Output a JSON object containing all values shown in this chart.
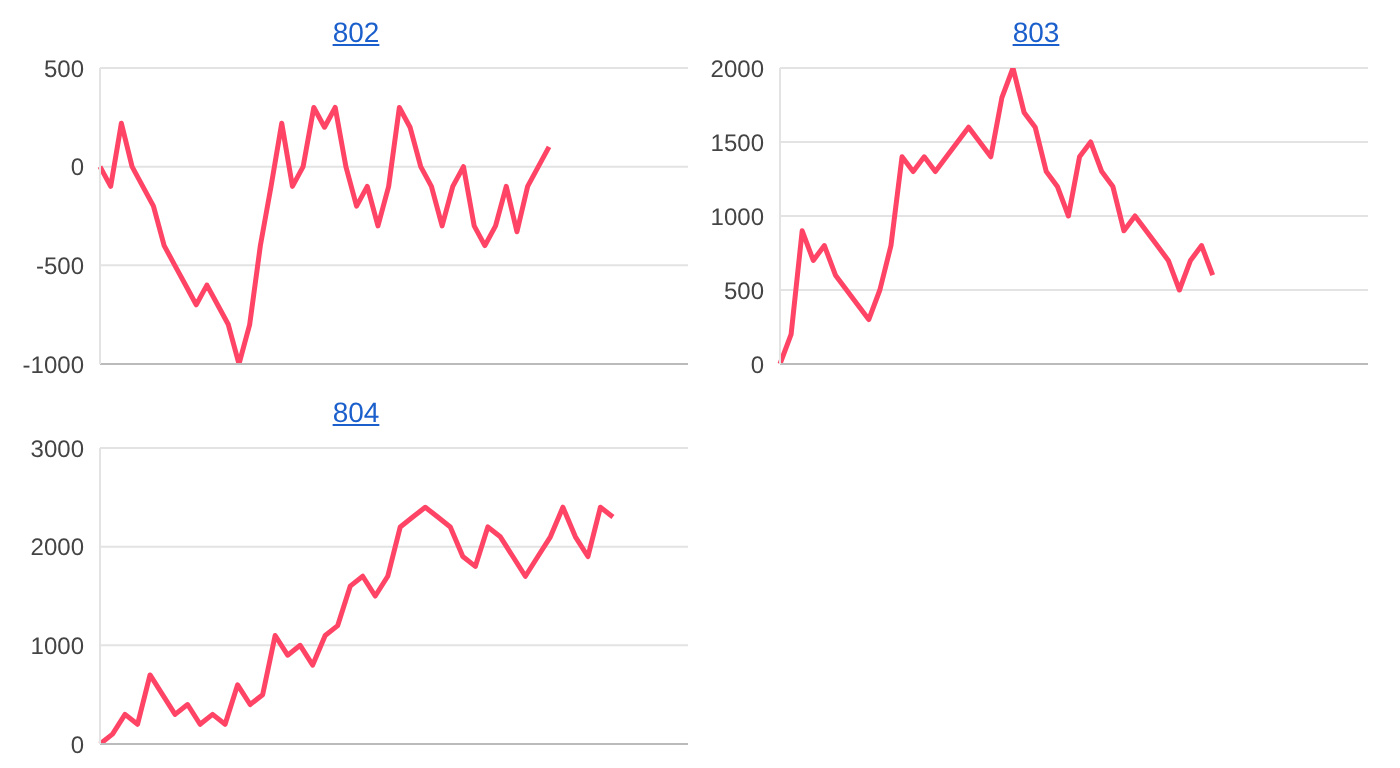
{
  "chart_data": [
    {
      "type": "line",
      "title": "802",
      "categories": [
        null,
        null,
        null,
        null,
        null,
        null,
        null,
        null,
        null,
        null,
        null,
        null,
        null,
        null,
        null,
        null,
        null,
        null,
        null,
        null,
        null,
        null,
        null,
        null,
        null,
        null,
        null,
        null,
        null,
        null,
        null,
        null,
        null,
        null,
        null,
        null,
        null,
        null,
        null,
        null,
        null,
        null,
        null,
        null,
        null,
        null,
        null,
        null,
        null,
        null,
        null,
        null,
        null,
        null,
        null,
        null
      ],
      "series": [
        {
          "color": "#ff4466",
          "values": [
            0,
            -100,
            220,
            0,
            -100,
            -200,
            -400,
            -500,
            -600,
            -700,
            -600,
            -700,
            -800,
            -1000,
            -800,
            -400,
            -100,
            220,
            -100,
            0,
            300,
            200,
            300,
            0,
            -200,
            -100,
            -300,
            -100,
            300,
            200,
            0,
            -100,
            -300,
            -100,
            0,
            -300,
            -400,
            -300,
            -100,
            -330,
            -100,
            0,
            100,
            null,
            null,
            null,
            null,
            null,
            null,
            null,
            null,
            null,
            null,
            null,
            null,
            null
          ]
        }
      ],
      "ylim": [
        -1000,
        500
      ],
      "yticks": [
        -1000,
        -500,
        0,
        500
      ],
      "grid": "y",
      "legend": false,
      "tick_labels": "y",
      "marker": "none",
      "line_style": "solid"
    },
    {
      "type": "line",
      "title": "803",
      "categories": [
        null,
        null,
        null,
        null,
        null,
        null,
        null,
        null,
        null,
        null,
        null,
        null,
        null,
        null,
        null,
        null,
        null,
        null,
        null,
        null,
        null,
        null,
        null,
        null,
        null,
        null,
        null,
        null,
        null,
        null,
        null,
        null,
        null,
        null,
        null,
        null,
        null,
        null,
        null,
        null,
        null,
        null,
        null,
        null,
        null,
        null,
        null,
        null,
        null,
        null,
        null,
        null,
        null,
        null
      ],
      "series": [
        {
          "color": "#ff4466",
          "values": [
            0,
            200,
            900,
            700,
            800,
            600,
            500,
            400,
            300,
            500,
            800,
            1400,
            1300,
            1400,
            1300,
            1400,
            1500,
            1600,
            1500,
            1400,
            1800,
            2000,
            1700,
            1600,
            1300,
            1200,
            1000,
            1400,
            1500,
            1300,
            1200,
            900,
            1000,
            900,
            800,
            700,
            500,
            700,
            800,
            600,
            null,
            null,
            null,
            null,
            null,
            null,
            null,
            null,
            null,
            null,
            null,
            null,
            null,
            null
          ]
        }
      ],
      "ylim": [
        0,
        2000
      ],
      "yticks": [
        0,
        500,
        1000,
        1500,
        2000
      ],
      "grid": "y",
      "legend": false,
      "tick_labels": "y",
      "marker": "none",
      "line_style": "solid"
    },
    {
      "type": "line",
      "title": "804",
      "categories": [
        null,
        null,
        null,
        null,
        null,
        null,
        null,
        null,
        null,
        null,
        null,
        null,
        null,
        null,
        null,
        null,
        null,
        null,
        null,
        null,
        null,
        null,
        null,
        null,
        null,
        null,
        null,
        null,
        null,
        null,
        null,
        null,
        null,
        null,
        null,
        null,
        null,
        null,
        null,
        null,
        null,
        null,
        null,
        null,
        null,
        null,
        null,
        null
      ],
      "series": [
        {
          "color": "#ff4466",
          "values": [
            0,
            100,
            300,
            200,
            700,
            500,
            300,
            400,
            200,
            300,
            200,
            600,
            400,
            500,
            1100,
            900,
            1000,
            800,
            1100,
            1200,
            1600,
            1700,
            1500,
            1700,
            2200,
            2300,
            2400,
            2300,
            2200,
            1900,
            1800,
            2200,
            2100,
            1900,
            1700,
            1900,
            2100,
            2400,
            2100,
            1900,
            2400,
            2300,
            null,
            null,
            null,
            null,
            null,
            null
          ]
        }
      ],
      "ylim": [
        0,
        3000
      ],
      "yticks": [
        0,
        1000,
        2000,
        3000
      ],
      "grid": "y",
      "legend": false,
      "tick_labels": "y",
      "marker": "none",
      "line_style": "solid"
    }
  ]
}
